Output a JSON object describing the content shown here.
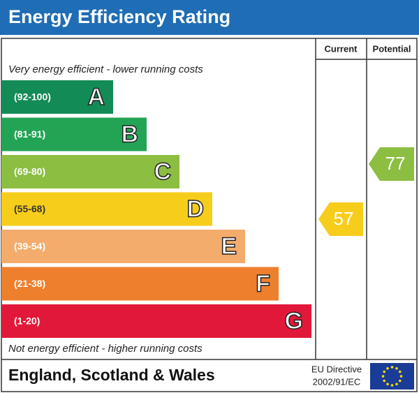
{
  "header": {
    "title": "Energy Efficiency Rating"
  },
  "columns": [
    "Current",
    "Potential"
  ],
  "top_note": "Very energy efficient - lower running costs",
  "bottom_note": "Not energy efficient - higher running costs",
  "bands": [
    {
      "range": "(92-100)",
      "letter": "A"
    },
    {
      "range": "(81-91)",
      "letter": "B"
    },
    {
      "range": "(69-80)",
      "letter": "C"
    },
    {
      "range": "(55-68)",
      "letter": "D"
    },
    {
      "range": "(39-54)",
      "letter": "E"
    },
    {
      "range": "(21-38)",
      "letter": "F"
    },
    {
      "range": "(1-20)",
      "letter": "G"
    }
  ],
  "current": 57,
  "potential": 77,
  "footer": {
    "region": "England, Scotland & Wales",
    "directive": [
      "EU Directive",
      "2002/91/EC"
    ]
  }
}
